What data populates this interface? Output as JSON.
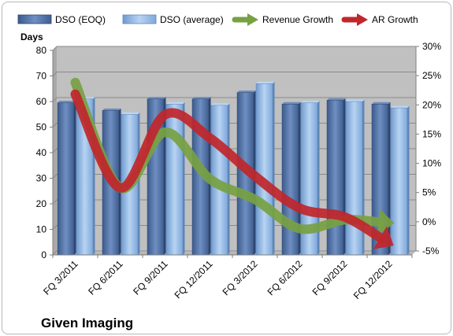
{
  "chart_data": {
    "type": "bar",
    "title": "Given Imaging",
    "ylabel": "Days",
    "ylim": [
      0,
      80
    ],
    "y_ticks": [
      0,
      10,
      20,
      30,
      40,
      50,
      60,
      70,
      80
    ],
    "y2lim": [
      -5,
      30
    ],
    "y2_ticks": [
      "-5%",
      "0%",
      "5%",
      "10%",
      "15%",
      "20%",
      "25%",
      "30%"
    ],
    "categories": [
      "FQ 3/2011",
      "FQ 6/2011",
      "FQ 9/2011",
      "FQ 12/2011",
      "FQ 3/2012",
      "FQ 6/2012",
      "FQ 9/2012",
      "FQ 12/2012"
    ],
    "series": [
      {
        "name": "DSO (EOQ)",
        "type": "bar",
        "axis": "left",
        "color": "#4f6fa3",
        "values": [
          59.5,
          56.5,
          61,
          61,
          63.5,
          59,
          60.5,
          59
        ]
      },
      {
        "name": "DSO (average)",
        "type": "bar",
        "axis": "left",
        "color": "#8db4e2",
        "values": [
          61,
          55,
          59,
          58.5,
          67,
          59.5,
          60,
          57.5
        ]
      },
      {
        "name": "Revenue Growth",
        "type": "line-arrow",
        "axis": "right",
        "color": "#77a142",
        "values": [
          24.5,
          6.5,
          16,
          8,
          4.5,
          -0.5,
          1,
          0.5
        ]
      },
      {
        "name": "AR Growth",
        "type": "line-arrow",
        "axis": "right",
        "color": "#c0262b",
        "values": [
          22.5,
          6.5,
          19,
          15,
          8.5,
          3,
          1.5,
          -3
        ]
      }
    ],
    "grid": true,
    "legend_position": "top"
  }
}
